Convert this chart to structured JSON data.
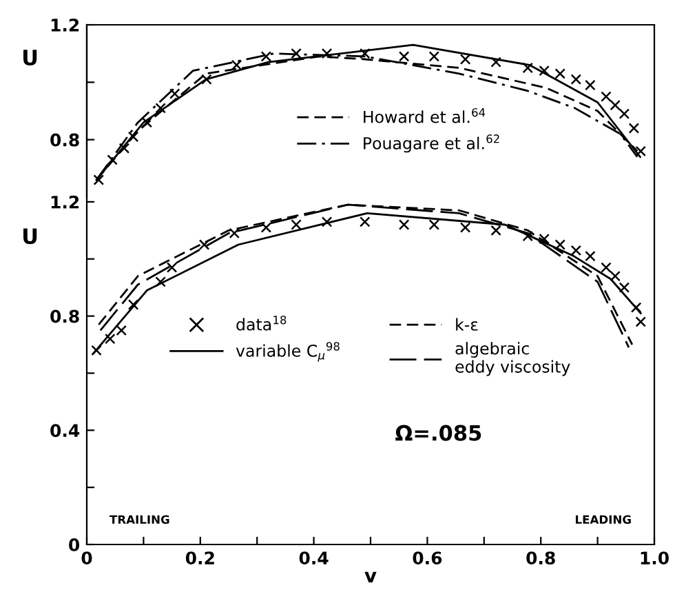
{
  "chart_data": [
    {
      "type": "line",
      "ylabel": "U",
      "xlim": [
        0,
        1
      ],
      "ylim": [
        0.6,
        1.2
      ],
      "yticks": [
        {
          "value": 0.8,
          "label": "0.8"
        },
        {
          "value": 1.0,
          "label": null
        },
        {
          "value": 1.2,
          "label": "1.2"
        }
      ],
      "tick_labels": "y",
      "legend": "center",
      "grid": false,
      "series": [
        {
          "type": "scatter",
          "marker": "cross",
          "color": "#000000",
          "x": [
            0.021,
            0.045,
            0.066,
            0.082,
            0.106,
            0.13,
            0.155,
            0.211,
            0.264,
            0.316,
            0.369,
            0.423,
            0.49,
            0.559,
            0.612,
            0.667,
            0.721,
            0.777,
            0.806,
            0.834,
            0.862,
            0.887,
            0.915,
            0.931,
            0.947,
            0.964,
            0.976
          ],
          "values": [
            0.66,
            0.73,
            0.77,
            0.81,
            0.86,
            0.91,
            0.96,
            1.01,
            1.06,
            1.09,
            1.1,
            1.1,
            1.1,
            1.09,
            1.09,
            1.08,
            1.07,
            1.05,
            1.04,
            1.03,
            1.01,
            0.99,
            0.95,
            0.92,
            0.89,
            0.84,
            0.76
          ]
        },
        {
          "line_style": "solid",
          "color": "#000000",
          "x": [
            0.017,
            0.1,
            0.21,
            0.32,
            0.575,
            0.78,
            0.9,
            0.975
          ],
          "values": [
            0.66,
            0.86,
            1.01,
            1.07,
            1.13,
            1.06,
            0.93,
            0.74
          ]
        },
        {
          "name": "Howard et al.$^{64}$",
          "line_style": "dashed",
          "color": "#000000",
          "x": [
            0.017,
            0.09,
            0.21,
            0.41,
            0.49,
            0.656,
            0.81,
            0.9,
            0.97
          ],
          "values": [
            0.66,
            0.83,
            1.03,
            1.09,
            1.08,
            1.05,
            0.98,
            0.9,
            0.76
          ]
        },
        {
          "name": "Pouagare et al.$^{62}$",
          "line_style": "dashdot",
          "color": "#000000",
          "x": [
            0.017,
            0.09,
            0.187,
            0.33,
            0.49,
            0.656,
            0.777,
            0.86,
            0.94,
            0.97
          ],
          "values": [
            0.66,
            0.86,
            1.04,
            1.1,
            1.09,
            1.03,
            0.97,
            0.91,
            0.82,
            0.74
          ]
        }
      ]
    },
    {
      "type": "line",
      "xlabel": "v",
      "ylabel": "U",
      "xlim": [
        0,
        1
      ],
      "ylim": [
        0,
        1.82
      ],
      "xticks": [
        0,
        {
          "value": 0.1,
          "label": null
        },
        0.2,
        {
          "value": 0.3,
          "label": null
        },
        0.4,
        {
          "value": 0.5,
          "label": null
        },
        0.6,
        {
          "value": 0.7,
          "label": null
        },
        0.8,
        {
          "value": 0.9,
          "label": null
        },
        {
          "value": 1.0,
          "label": "1.0"
        }
      ],
      "yticks": [
        0,
        {
          "value": 0.2,
          "label": null
        },
        0.4,
        {
          "value": 0.6,
          "label": null
        },
        0.8,
        {
          "value": 1.0,
          "label": null
        },
        1.2
      ],
      "legend": "center",
      "grid": false,
      "annotations": [
        "TRAILING",
        "LEADING",
        "Ω=.085"
      ],
      "series": [
        {
          "type": "scatter",
          "name": "data$^{18}$",
          "marker": "cross",
          "color": "#000000",
          "x": [
            0.017,
            0.041,
            0.061,
            0.082,
            0.13,
            0.15,
            0.207,
            0.26,
            0.316,
            0.369,
            0.423,
            0.49,
            0.559,
            0.612,
            0.667,
            0.721,
            0.777,
            0.806,
            0.834,
            0.862,
            0.887,
            0.915,
            0.931,
            0.947,
            0.968,
            0.976
          ],
          "values": [
            0.68,
            0.72,
            0.75,
            0.84,
            0.92,
            0.97,
            1.05,
            1.09,
            1.11,
            1.12,
            1.13,
            1.13,
            1.12,
            1.12,
            1.11,
            1.1,
            1.08,
            1.07,
            1.05,
            1.03,
            1.01,
            0.97,
            0.94,
            0.9,
            0.83,
            0.78
          ]
        },
        {
          "name": "variable C$_{μ}$$^{98}$",
          "line_style": "solid",
          "color": "#000000",
          "x": [
            0.012,
            0.106,
            0.267,
            0.494,
            0.737,
            0.858,
            0.923,
            0.976
          ],
          "values": [
            0.67,
            0.89,
            1.05,
            1.16,
            1.12,
            1.01,
            0.93,
            0.81
          ]
        },
        {
          "name": "k-ε",
          "line_style": "dashed",
          "color": "#000000",
          "x": [
            0.021,
            0.09,
            0.25,
            0.46,
            0.656,
            0.777,
            0.9,
            0.961
          ],
          "values": [
            0.77,
            0.94,
            1.1,
            1.19,
            1.17,
            1.1,
            0.94,
            0.7
          ]
        },
        {
          "name": "algebraic\neddy viscosity",
          "line_style": "longdash",
          "color": "#000000",
          "x": [
            0.024,
            0.09,
            0.25,
            0.46,
            0.656,
            0.777,
            0.9,
            0.955
          ],
          "values": [
            0.75,
            0.91,
            1.09,
            1.19,
            1.16,
            1.09,
            0.92,
            0.69
          ]
        }
      ]
    }
  ]
}
